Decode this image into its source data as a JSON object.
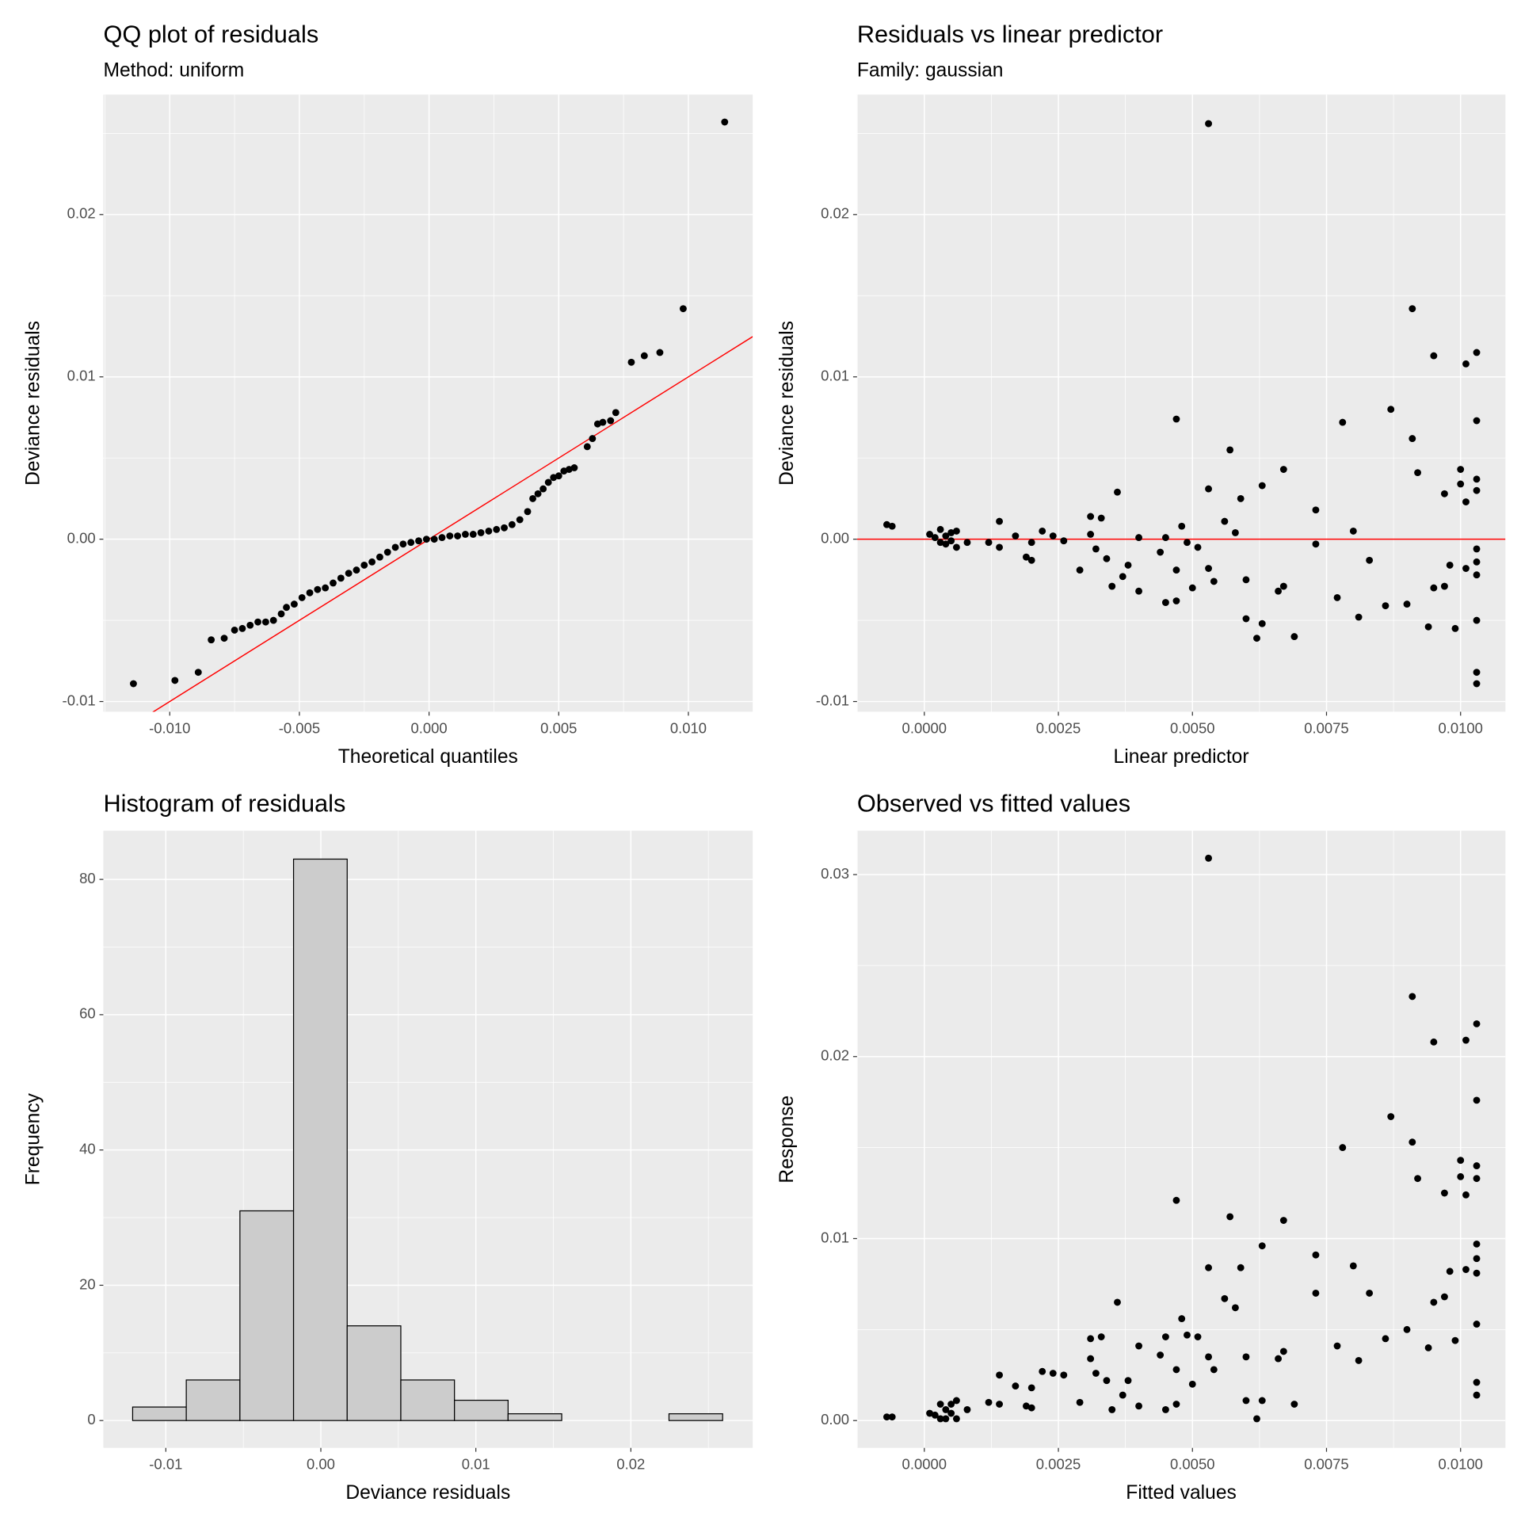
{
  "chart_data": [
    {
      "type": "scatter",
      "title": "QQ plot of residuals",
      "subtitle": "Method: uniform",
      "xlabel": "Theoretical quantiles",
      "ylabel": "Deviance residuals",
      "color": "#000000",
      "x": [
        -0.0114,
        -0.0098,
        -0.0089,
        -0.0084,
        -0.0079,
        -0.0075,
        -0.0072,
        -0.0069,
        -0.0066,
        -0.0063,
        -0.006,
        -0.0057,
        -0.0055,
        -0.0052,
        -0.0049,
        -0.0046,
        -0.0043,
        -0.004,
        -0.0037,
        -0.0034,
        -0.0031,
        -0.0028,
        -0.0025,
        -0.0022,
        -0.0019,
        -0.0016,
        -0.0013,
        -0.001,
        -0.0007,
        -0.0004,
        -0.0001,
        0.0002,
        0.0005,
        0.0008,
        0.0011,
        0.0014,
        0.0017,
        0.002,
        0.0023,
        0.0026,
        0.0029,
        0.0032,
        0.0035,
        0.0038,
        0.004,
        0.0042,
        0.0044,
        0.0046,
        0.0048,
        0.005,
        0.0052,
        0.0054,
        0.0056,
        0.0061,
        0.0063,
        0.0065,
        0.0067,
        0.007,
        0.0072,
        0.0078,
        0.0083,
        0.0089,
        0.0098,
        0.0114
      ],
      "values": [
        -0.0089,
        -0.0087,
        -0.0082,
        -0.0062,
        -0.0061,
        -0.0056,
        -0.0055,
        -0.0053,
        -0.0051,
        -0.0051,
        -0.005,
        -0.0046,
        -0.0042,
        -0.004,
        -0.0036,
        -0.0033,
        -0.0031,
        -0.003,
        -0.0027,
        -0.0024,
        -0.0021,
        -0.0019,
        -0.0016,
        -0.0014,
        -0.0011,
        -0.0008,
        -0.0005,
        -0.0003,
        -0.0002,
        -0.0001,
        0.0,
        0.0,
        0.0001,
        0.0002,
        0.0002,
        0.0003,
        0.0003,
        0.0004,
        0.0005,
        0.0006,
        0.0007,
        0.0009,
        0.0012,
        0.0017,
        0.0025,
        0.0028,
        0.0031,
        0.0035,
        0.0038,
        0.0039,
        0.0042,
        0.0043,
        0.0044,
        0.0057,
        0.0062,
        0.0071,
        0.0072,
        0.0073,
        0.0078,
        0.0109,
        0.0113,
        0.0115,
        0.0142,
        0.0257
      ],
      "reference_line": {
        "slope": 1,
        "intercept": 0,
        "color": "#FF0000"
      },
      "xlim": [
        -0.01256,
        0.01248
      ],
      "ylim": [
        -0.01063,
        0.02739
      ],
      "xticks": [
        {
          "value": -0.01,
          "label": "-0.010"
        },
        {
          "value": -0.005,
          "label": "-0.005"
        },
        {
          "value": 0,
          "label": "0.000"
        },
        {
          "value": 0.005,
          "label": "0.005"
        },
        {
          "value": 0.01,
          "label": "0.010"
        }
      ],
      "yticks": [
        -0.01,
        {
          "value": 0,
          "label": "0.00"
        },
        0.01,
        0.02
      ],
      "grid": true
    },
    {
      "type": "scatter",
      "title": "Residuals vs linear predictor",
      "subtitle": "Family: gaussian",
      "xlabel": "Linear predictor",
      "ylabel": "Deviance residuals",
      "color": "#000000",
      "x": [
        -0.0007,
        -0.0006,
        0.0001,
        0.0002,
        0.0003,
        0.0003,
        0.0004,
        0.0004,
        0.0005,
        0.0005,
        0.0006,
        0.0006,
        0.0008,
        0.0012,
        0.0014,
        0.0014,
        0.0017,
        0.0019,
        0.002,
        0.002,
        0.0022,
        0.0024,
        0.0026,
        0.0029,
        0.0031,
        0.0031,
        0.0032,
        0.0033,
        0.0034,
        0.0035,
        0.0036,
        0.0037,
        0.0038,
        0.004,
        0.004,
        0.0044,
        0.0045,
        0.0045,
        0.0047,
        0.0047,
        0.0047,
        0.0048,
        0.0049,
        0.005,
        0.0051,
        0.0053,
        0.0053,
        0.0053,
        0.0054,
        0.0056,
        0.0057,
        0.0058,
        0.0059,
        0.006,
        0.006,
        0.0062,
        0.0063,
        0.0063,
        0.0066,
        0.0067,
        0.0067,
        0.0069,
        0.0073,
        0.0073,
        0.0077,
        0.0078,
        0.008,
        0.0081,
        0.0083,
        0.0086,
        0.0087,
        0.009,
        0.0091,
        0.0091,
        0.0092,
        0.0094,
        0.0095,
        0.0095,
        0.0097,
        0.0097,
        0.0098,
        0.0099,
        0.01,
        0.01,
        0.0101,
        0.0101,
        0.0101,
        0.0103,
        0.0103,
        0.0103,
        0.0103,
        0.0103,
        0.0103,
        0.0103,
        0.0103,
        0.0103,
        0.0103
      ],
      "values": [
        0.0009,
        0.0008,
        0.0003,
        0.0001,
        0.0006,
        -0.0002,
        0.0002,
        -0.0003,
        0.0004,
        -0.0001,
        0.0005,
        -0.0005,
        -0.0002,
        -0.0002,
        0.0011,
        -0.0005,
        0.0002,
        -0.0011,
        -0.0013,
        -0.0002,
        0.0005,
        0.0002,
        -0.0001,
        -0.0019,
        0.0014,
        0.0003,
        -0.0006,
        0.0013,
        -0.0012,
        -0.0029,
        0.0029,
        -0.0023,
        -0.0016,
        -0.0032,
        0.0001,
        -0.0008,
        -0.0039,
        0.0001,
        0.0074,
        -0.0019,
        -0.0038,
        0.0008,
        -0.0002,
        -0.003,
        -0.0005,
        0.0031,
        -0.0018,
        0.0256,
        -0.0026,
        0.0011,
        0.0055,
        0.0004,
        0.0025,
        -0.0049,
        -0.0025,
        -0.0061,
        0.0033,
        -0.0052,
        -0.0032,
        0.0043,
        -0.0029,
        -0.006,
        0.0018,
        -0.0003,
        -0.0036,
        0.0072,
        0.0005,
        -0.0048,
        -0.0013,
        -0.0041,
        0.008,
        -0.004,
        0.0062,
        0.0142,
        0.0041,
        -0.0054,
        0.0113,
        -0.003,
        -0.0029,
        0.0028,
        -0.0016,
        -0.0055,
        0.0034,
        0.0043,
        0.0108,
        0.0023,
        -0.0018,
        0.0115,
        0.0073,
        0.0037,
        0.003,
        -0.0006,
        -0.0014,
        -0.0022,
        -0.005,
        -0.0082,
        -0.0089
      ],
      "hline": {
        "value": 0,
        "color": "#FF0000"
      },
      "xlim": [
        -0.001255,
        0.010836
      ],
      "ylim": [
        -0.01063,
        0.02739
      ],
      "xticks": [
        {
          "value": 0,
          "label": "0.0000"
        },
        {
          "value": 0.0025,
          "label": "0.0025"
        },
        {
          "value": 0.005,
          "label": "0.0050"
        },
        {
          "value": 0.0075,
          "label": "0.0075"
        },
        {
          "value": 0.01,
          "label": "0.0100"
        }
      ],
      "yticks": [
        -0.01,
        {
          "value": 0,
          "label": "0.00"
        },
        0.01,
        0.02
      ],
      "grid": true
    },
    {
      "type": "histogram",
      "title": "Histogram of residuals",
      "xlabel": "Deviance residuals",
      "ylabel": "Frequency",
      "color": "#CCCCCC",
      "edgecolor": "#000000",
      "bins": [
        -0.01214,
        -0.00868,
        -0.00522,
        -0.00176,
        0.0017,
        0.00516,
        0.00862,
        0.01208,
        0.01554,
        0.019,
        0.02246,
        0.02592
      ],
      "values": [
        2,
        6,
        31,
        83,
        14,
        6,
        3,
        1,
        0,
        0,
        1
      ],
      "xlim": [
        -0.01403,
        0.02786
      ],
      "ylim": [
        -4.04,
        87.2
      ],
      "xticks": [
        -0.01,
        {
          "value": 0,
          "label": "0.00"
        },
        0.01,
        0.02
      ],
      "yticks": [
        0,
        20,
        40,
        60,
        80
      ],
      "grid": true
    },
    {
      "type": "scatter",
      "title": "Observed vs fitted values",
      "xlabel": "Fitted values",
      "ylabel": "Response",
      "color": "#000000",
      "x": [
        -0.0007,
        -0.0006,
        0.0001,
        0.0002,
        0.0003,
        0.0003,
        0.0004,
        0.0004,
        0.0005,
        0.0005,
        0.0006,
        0.0006,
        0.0008,
        0.0012,
        0.0014,
        0.0014,
        0.0017,
        0.0019,
        0.002,
        0.002,
        0.0022,
        0.0024,
        0.0026,
        0.0029,
        0.0031,
        0.0031,
        0.0032,
        0.0033,
        0.0034,
        0.0035,
        0.0036,
        0.0037,
        0.0038,
        0.004,
        0.004,
        0.0044,
        0.0045,
        0.0045,
        0.0047,
        0.0047,
        0.0047,
        0.0048,
        0.0049,
        0.005,
        0.0051,
        0.0053,
        0.0053,
        0.0053,
        0.0054,
        0.0056,
        0.0057,
        0.0058,
        0.0059,
        0.006,
        0.006,
        0.0062,
        0.0063,
        0.0063,
        0.0066,
        0.0067,
        0.0067,
        0.0069,
        0.0073,
        0.0073,
        0.0077,
        0.0078,
        0.008,
        0.0081,
        0.0083,
        0.0086,
        0.0087,
        0.009,
        0.0091,
        0.0091,
        0.0092,
        0.0094,
        0.0095,
        0.0095,
        0.0097,
        0.0097,
        0.0098,
        0.0099,
        0.01,
        0.01,
        0.0101,
        0.0101,
        0.0101,
        0.0103,
        0.0103,
        0.0103,
        0.0103,
        0.0103,
        0.0103,
        0.0103,
        0.0103,
        0.0103,
        0.0103
      ],
      "values": [
        0.0002,
        0.0002,
        0.0004,
        0.0003,
        0.0009,
        0.0001,
        0.0006,
        0.0001,
        0.0009,
        0.0004,
        0.0011,
        0.0001,
        0.0006,
        0.001,
        0.0025,
        0.0009,
        0.0019,
        0.0008,
        0.0007,
        0.0018,
        0.0027,
        0.0026,
        0.0025,
        0.001,
        0.0045,
        0.0034,
        0.0026,
        0.0046,
        0.0022,
        0.0006,
        0.0065,
        0.0014,
        0.0022,
        0.0008,
        0.0041,
        0.0036,
        0.0006,
        0.0046,
        0.0121,
        0.0028,
        0.0009,
        0.0056,
        0.0047,
        0.002,
        0.0046,
        0.0084,
        0.0035,
        0.0309,
        0.0028,
        0.0067,
        0.0112,
        0.0062,
        0.0084,
        0.0011,
        0.0035,
        0.0001,
        0.0096,
        0.0011,
        0.0034,
        0.011,
        0.0038,
        0.0009,
        0.0091,
        0.007,
        0.0041,
        0.015,
        0.0085,
        0.0033,
        0.007,
        0.0045,
        0.0167,
        0.005,
        0.0153,
        0.0233,
        0.0133,
        0.004,
        0.0208,
        0.0065,
        0.0068,
        0.0125,
        0.0082,
        0.0044,
        0.0134,
        0.0143,
        0.0209,
        0.0124,
        0.0083,
        0.0218,
        0.0176,
        0.014,
        0.0133,
        0.0097,
        0.0089,
        0.0081,
        0.0053,
        0.0021,
        0.0014
      ],
      "xlim": [
        -0.001255,
        0.010836
      ],
      "ylim": [
        -0.0015,
        0.03241
      ],
      "xticks": [
        {
          "value": 0,
          "label": "0.0000"
        },
        {
          "value": 0.0025,
          "label": "0.0025"
        },
        {
          "value": 0.005,
          "label": "0.0050"
        },
        {
          "value": 0.0075,
          "label": "0.0075"
        },
        {
          "value": 0.01,
          "label": "0.0100"
        }
      ],
      "yticks": [
        {
          "value": 0,
          "label": "0.00"
        },
        0.01,
        0.02,
        0.03
      ],
      "grid": true
    }
  ]
}
